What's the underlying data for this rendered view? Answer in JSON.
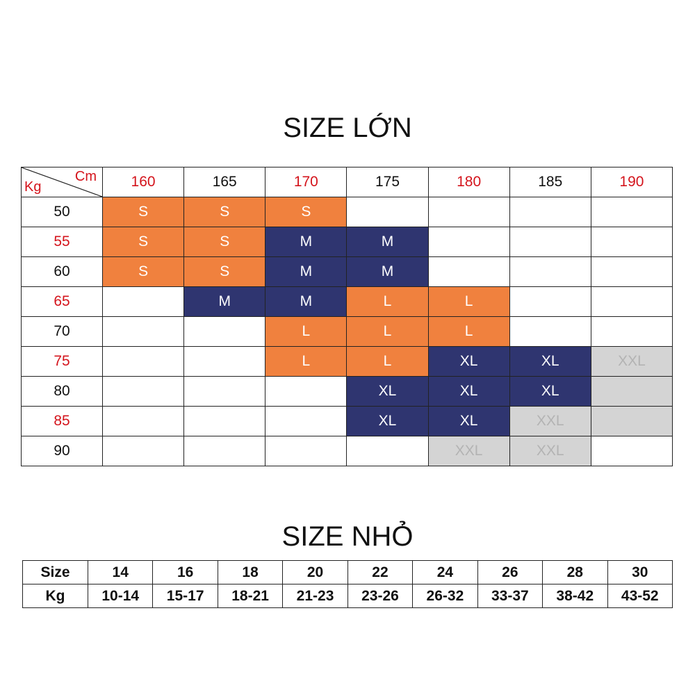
{
  "large_table": {
    "title": "SIZE LỚN",
    "corner_top": "Cm",
    "corner_bottom": "Kg",
    "columns": [
      "160",
      "165",
      "170",
      "175",
      "180",
      "185",
      "190"
    ],
    "styles": {
      "S": {
        "fill": "#f0813e",
        "text": "#ffffff"
      },
      "M": {
        "fill": "#2f3570",
        "text": "#ffffff"
      },
      "L": {
        "fill": "#f0813e",
        "text": "#ffffff"
      },
      "XL": {
        "fill": "#2f3570",
        "text": "#ffffff"
      },
      "XXL": {
        "fill": "#d4d4d4",
        "text": "#b3b3b3"
      }
    },
    "rows": [
      {
        "weight": "50",
        "cells": [
          "S",
          "S",
          "S",
          null,
          null,
          null,
          null
        ]
      },
      {
        "weight": "55",
        "cells": [
          "S",
          "S",
          "M",
          "M",
          null,
          null,
          null
        ]
      },
      {
        "weight": "60",
        "cells": [
          "S",
          "S",
          "M",
          "M",
          null,
          null,
          null
        ]
      },
      {
        "weight": "65",
        "cells": [
          null,
          "M",
          "M",
          "L",
          "L",
          null,
          null
        ]
      },
      {
        "weight": "70",
        "cells": [
          null,
          null,
          "L",
          "L",
          "L",
          null,
          null
        ]
      },
      {
        "weight": "75",
        "cells": [
          null,
          null,
          "L",
          "L",
          "XL",
          "XL",
          "XXL"
        ]
      },
      {
        "weight": "80",
        "cells": [
          null,
          null,
          null,
          "XL",
          "XL",
          "XL",
          {
            "fill": "#d4d4d4"
          }
        ]
      },
      {
        "weight": "85",
        "cells": [
          null,
          null,
          null,
          "XL",
          "XL",
          "XXL",
          {
            "fill": "#d4d4d4"
          }
        ]
      },
      {
        "weight": "90",
        "cells": [
          null,
          null,
          null,
          null,
          "XXL",
          "XXL",
          null
        ]
      }
    ]
  },
  "small_table": {
    "title": "SIZE NHỎ",
    "header": {
      "label": "Size",
      "values": [
        "14",
        "16",
        "18",
        "20",
        "22",
        "24",
        "26",
        "28",
        "30"
      ]
    },
    "row": {
      "label": "Kg",
      "values": [
        "10-14",
        "15-17",
        "18-21",
        "21-23",
        "23-26",
        "26-32",
        "33-37",
        "38-42",
        "43-52"
      ]
    }
  }
}
